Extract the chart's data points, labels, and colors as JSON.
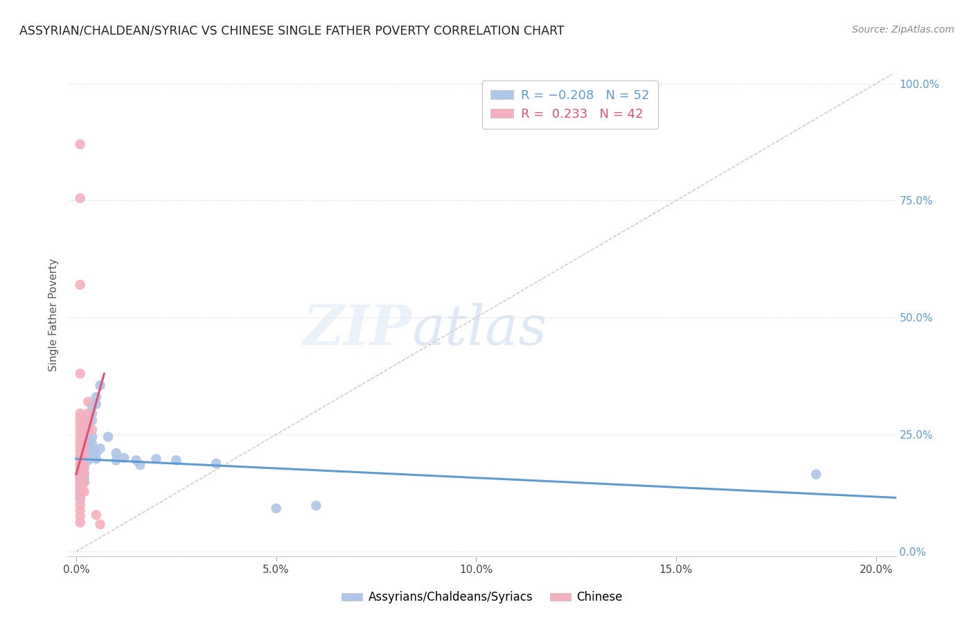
{
  "title": "ASSYRIAN/CHALDEAN/SYRIAC VS CHINESE SINGLE FATHER POVERTY CORRELATION CHART",
  "source": "Source: ZipAtlas.com",
  "ylabel": "Single Father Poverty",
  "xlabel_ticks": [
    "0.0%",
    "5.0%",
    "10.0%",
    "15.0%",
    "20.0%"
  ],
  "xlabel_vals": [
    0.0,
    0.05,
    0.1,
    0.15,
    0.2
  ],
  "ylabel_ticks": [
    "0.0%",
    "25.0%",
    "50.0%",
    "75.0%",
    "100.0%"
  ],
  "ylabel_vals": [
    0.0,
    0.25,
    0.5,
    0.75,
    1.0
  ],
  "xlim": [
    -0.002,
    0.205
  ],
  "ylim": [
    -0.01,
    1.02
  ],
  "legend_label1": "Assyrians/Chaldeans/Syriacs",
  "legend_label2": "Chinese",
  "color_blue": "#aec6e8",
  "color_pink": "#f4b0be",
  "color_blue_line": "#5b9bd5",
  "color_pink_line": "#e05070",
  "color_diag": "#d8a8b0",
  "title_color": "#222222",
  "source_color": "#888888",
  "right_tick_color": "#5b9bd5",
  "blue_scatter": [
    [
      0.001,
      0.2
    ],
    [
      0.001,
      0.185
    ],
    [
      0.001,
      0.175
    ],
    [
      0.001,
      0.168
    ],
    [
      0.001,
      0.16
    ],
    [
      0.001,
      0.155
    ],
    [
      0.001,
      0.15
    ],
    [
      0.001,
      0.142
    ],
    [
      0.001,
      0.135
    ],
    [
      0.001,
      0.128
    ],
    [
      0.001,
      0.12
    ],
    [
      0.001,
      0.112
    ],
    [
      0.002,
      0.22
    ],
    [
      0.002,
      0.21
    ],
    [
      0.002,
      0.195
    ],
    [
      0.002,
      0.188
    ],
    [
      0.002,
      0.178
    ],
    [
      0.002,
      0.165
    ],
    [
      0.002,
      0.155
    ],
    [
      0.002,
      0.148
    ],
    [
      0.003,
      0.28
    ],
    [
      0.003,
      0.265
    ],
    [
      0.003,
      0.25
    ],
    [
      0.003,
      0.238
    ],
    [
      0.003,
      0.225
    ],
    [
      0.003,
      0.215
    ],
    [
      0.003,
      0.205
    ],
    [
      0.003,
      0.195
    ],
    [
      0.004,
      0.31
    ],
    [
      0.004,
      0.295
    ],
    [
      0.004,
      0.28
    ],
    [
      0.004,
      0.245
    ],
    [
      0.004,
      0.23
    ],
    [
      0.004,
      0.218
    ],
    [
      0.005,
      0.33
    ],
    [
      0.005,
      0.315
    ],
    [
      0.005,
      0.21
    ],
    [
      0.005,
      0.198
    ],
    [
      0.006,
      0.355
    ],
    [
      0.006,
      0.22
    ],
    [
      0.008,
      0.245
    ],
    [
      0.01,
      0.21
    ],
    [
      0.01,
      0.195
    ],
    [
      0.012,
      0.2
    ],
    [
      0.015,
      0.195
    ],
    [
      0.016,
      0.185
    ],
    [
      0.02,
      0.198
    ],
    [
      0.025,
      0.195
    ],
    [
      0.035,
      0.188
    ],
    [
      0.05,
      0.092
    ],
    [
      0.06,
      0.098
    ],
    [
      0.185,
      0.165
    ]
  ],
  "pink_scatter": [
    [
      0.001,
      0.87
    ],
    [
      0.001,
      0.755
    ],
    [
      0.001,
      0.57
    ],
    [
      0.001,
      0.38
    ],
    [
      0.001,
      0.295
    ],
    [
      0.001,
      0.285
    ],
    [
      0.001,
      0.275
    ],
    [
      0.001,
      0.265
    ],
    [
      0.001,
      0.255
    ],
    [
      0.001,
      0.245
    ],
    [
      0.001,
      0.235
    ],
    [
      0.001,
      0.225
    ],
    [
      0.001,
      0.215
    ],
    [
      0.001,
      0.205
    ],
    [
      0.001,
      0.198
    ],
    [
      0.001,
      0.188
    ],
    [
      0.001,
      0.178
    ],
    [
      0.001,
      0.168
    ],
    [
      0.001,
      0.155
    ],
    [
      0.001,
      0.145
    ],
    [
      0.001,
      0.135
    ],
    [
      0.001,
      0.125
    ],
    [
      0.001,
      0.112
    ],
    [
      0.001,
      0.1
    ],
    [
      0.001,
      0.088
    ],
    [
      0.001,
      0.075
    ],
    [
      0.001,
      0.062
    ],
    [
      0.002,
      0.275
    ],
    [
      0.002,
      0.255
    ],
    [
      0.002,
      0.238
    ],
    [
      0.002,
      0.222
    ],
    [
      0.002,
      0.205
    ],
    [
      0.002,
      0.185
    ],
    [
      0.002,
      0.168
    ],
    [
      0.002,
      0.148
    ],
    [
      0.002,
      0.128
    ],
    [
      0.003,
      0.32
    ],
    [
      0.003,
      0.295
    ],
    [
      0.003,
      0.278
    ],
    [
      0.004,
      0.26
    ],
    [
      0.005,
      0.078
    ],
    [
      0.006,
      0.058
    ]
  ],
  "blue_line_x": [
    0.0,
    0.205
  ],
  "blue_line_y": [
    0.198,
    0.115
  ],
  "pink_line_x": [
    0.0,
    0.007
  ],
  "pink_line_y": [
    0.165,
    0.38
  ],
  "diag_line_x": [
    0.0,
    0.205
  ],
  "diag_line_y": [
    0.0,
    1.025
  ]
}
